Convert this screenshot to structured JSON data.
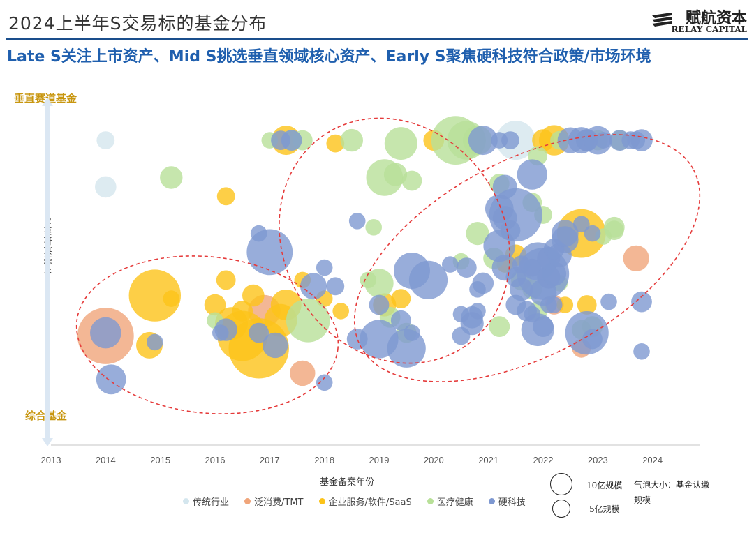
{
  "header": {
    "title": "2024上半年S交易标的基金分布",
    "logo_cn": "赋航资本",
    "logo_en": "RELAY CAPITAL",
    "subtitle": "Late S关注上市资产、Mid S挑选垂直领域核心资产、Early S聚焦硬科技符合政策/市场环境"
  },
  "chart_data": {
    "type": "scatter",
    "xlabel": "基金备案年份",
    "ylabel": "主赛道投资%",
    "ytop_label": "垂直赛道基金",
    "ybottom_label": "综合基金",
    "x_ticks": [
      "2013",
      "2014",
      "2015",
      "2016",
      "2017",
      "2018",
      "2019",
      "2020",
      "2021",
      "2022",
      "2023",
      "2024"
    ],
    "xlim": [
      2013,
      2025
    ],
    "ylim": [
      0,
      100
    ],
    "size_legend": [
      {
        "label": "10亿规模",
        "value": 10
      },
      {
        "label": "5亿规模",
        "value": 5
      }
    ],
    "size_note": "气泡大小：基金认缴规模",
    "colors": {
      "传统行业": "#d4e6ee",
      "泛消费/TMT": "#f0a57a",
      "企业服务/软件/SaaS": "#fcc319",
      "医疗健康": "#b8e098",
      "硬科技": "#7e98d1"
    },
    "series": [
      {
        "name": "传统行业",
        "points": [
          [
            2014.0,
            93,
            1.2
          ],
          [
            2014.0,
            78,
            1.7
          ],
          [
            2021.5,
            93,
            5.7
          ],
          [
            2021.5,
            54,
            1.0
          ]
        ]
      },
      {
        "name": "泛消费/TMT",
        "points": [
          [
            2014.0,
            30,
            11.8
          ],
          [
            2016.9,
            38,
            3.9
          ],
          [
            2017.6,
            18,
            2.4
          ],
          [
            2022.2,
            40,
            1.4
          ],
          [
            2022.7,
            26,
            1.3
          ],
          [
            2023.7,
            55,
            2.5
          ]
        ]
      },
      {
        "name": "企业服务/软件/SaaS",
        "points": [
          [
            2014.9,
            43,
            10.0
          ],
          [
            2015.2,
            42,
            1.0
          ],
          [
            2014.8,
            27,
            2.6
          ],
          [
            2016.0,
            40,
            1.7
          ],
          [
            2016.2,
            48,
            1.4
          ],
          [
            2016.7,
            43,
            1.8
          ],
          [
            2016.5,
            38,
            1.6
          ],
          [
            2016.3,
            34,
            4.0
          ],
          [
            2016.5,
            30,
            9.3
          ],
          [
            2016.8,
            26,
            13.5
          ],
          [
            2017.3,
            40,
            3.5
          ],
          [
            2017.2,
            35,
            4.0
          ],
          [
            2017.3,
            93,
            3.2
          ],
          [
            2017.6,
            48,
            1.0
          ],
          [
            2018.0,
            42,
            1.0
          ],
          [
            2018.3,
            38,
            1.0
          ],
          [
            2018.2,
            92,
            1.2
          ],
          [
            2016.2,
            75,
            1.2
          ],
          [
            2019.1,
            40,
            2.0
          ],
          [
            2019.4,
            42,
            1.4
          ],
          [
            2020.0,
            93,
            1.6
          ],
          [
            2021.3,
            53,
            1.0
          ],
          [
            2021.5,
            56,
            1.7
          ],
          [
            2022.0,
            93,
            1.8
          ],
          [
            2022.2,
            93,
            3.4
          ],
          [
            2022.4,
            40,
            1.0
          ],
          [
            2022.7,
            63,
            8.8
          ],
          [
            2022.8,
            40,
            1.4
          ]
        ]
      },
      {
        "name": "医疗健康",
        "points": [
          [
            2015.2,
            81,
            1.9
          ],
          [
            2016.0,
            35,
            1.0
          ],
          [
            2017.0,
            93,
            1.0
          ],
          [
            2017.4,
            93,
            1.5
          ],
          [
            2017.6,
            93,
            1.5
          ],
          [
            2017.7,
            35,
            7.1
          ],
          [
            2018.5,
            93,
            1.9
          ],
          [
            2019.0,
            47,
            3.1
          ],
          [
            2019.1,
            81,
            5.0
          ],
          [
            2019.2,
            36,
            1.6
          ],
          [
            2019.3,
            82,
            2.0
          ],
          [
            2019.4,
            92,
            4.0
          ],
          [
            2019.6,
            80,
            1.5
          ],
          [
            2019.5,
            31,
            1.5
          ],
          [
            2018.9,
            65,
            1.0
          ],
          [
            2018.8,
            48,
            1.0
          ],
          [
            2020.4,
            93,
            8.8
          ],
          [
            2020.6,
            93,
            5.5
          ],
          [
            2020.8,
            93,
            3.2
          ],
          [
            2020.8,
            63,
            2.0
          ],
          [
            2020.5,
            54,
            1.0
          ],
          [
            2021.2,
            79,
            1.5
          ],
          [
            2021.1,
            55,
            1.7
          ],
          [
            2021.2,
            33,
            1.6
          ],
          [
            2021.6,
            48,
            1.6
          ],
          [
            2021.8,
            45,
            1.4
          ],
          [
            2021.8,
            73,
            1.4
          ],
          [
            2021.9,
            38,
            1.4
          ],
          [
            2022.3,
            93,
            1.3
          ],
          [
            2022.3,
            47,
            1.0
          ],
          [
            2022.7,
            32,
            1.4
          ],
          [
            2022.9,
            33,
            1.6
          ],
          [
            2023.0,
            93,
            1.5
          ],
          [
            2023.3,
            64,
            1.4
          ],
          [
            2023.3,
            65,
            1.6
          ],
          [
            2023.4,
            93,
            1.5
          ],
          [
            2023.1,
            62,
            1.0
          ],
          [
            2021.9,
            88,
            1.4
          ],
          [
            2022.0,
            69,
            1.2
          ]
        ]
      },
      {
        "name": "硬科技",
        "points": [
          [
            2014.0,
            31,
            3.6
          ],
          [
            2014.1,
            16,
            3.3
          ],
          [
            2014.9,
            28,
            1.0
          ],
          [
            2016.1,
            31,
            1.0
          ],
          [
            2016.2,
            32,
            1.9
          ],
          [
            2016.8,
            31,
            1.5
          ],
          [
            2017.0,
            57,
            7.8
          ],
          [
            2017.1,
            27,
            2.4
          ],
          [
            2016.8,
            63,
            1.0
          ],
          [
            2017.8,
            46,
            2.6
          ],
          [
            2018.2,
            46,
            1.2
          ],
          [
            2018.0,
            15,
            1.0
          ],
          [
            2017.2,
            93,
            1.4
          ],
          [
            2017.4,
            93,
            1.6
          ],
          [
            2018.6,
            67,
            1.0
          ],
          [
            2018.6,
            29,
            1.6
          ],
          [
            2018.0,
            52,
            1.0
          ],
          [
            2019.0,
            29,
            5.5
          ],
          [
            2019.0,
            40,
            1.5
          ],
          [
            2019.4,
            35,
            1.5
          ],
          [
            2019.5,
            26,
            5.5
          ],
          [
            2019.6,
            31,
            1.0
          ],
          [
            2019.6,
            51,
            4.9
          ],
          [
            2019.9,
            48,
            5.5
          ],
          [
            2020.3,
            53,
            1.0
          ],
          [
            2020.5,
            37,
            1.0
          ],
          [
            2020.6,
            52,
            1.5
          ],
          [
            2020.5,
            30,
            1.2
          ],
          [
            2020.7,
            34,
            2.0
          ],
          [
            2020.8,
            38,
            1.0
          ],
          [
            2020.8,
            45,
            1.0
          ],
          [
            2020.9,
            47,
            1.7
          ],
          [
            2020.7,
            36,
            1.8
          ],
          [
            2020.9,
            93,
            3.2
          ],
          [
            2021.2,
            93,
            1.0
          ],
          [
            2021.4,
            93,
            1.2
          ],
          [
            2021.3,
            78,
            2.2
          ],
          [
            2021.2,
            71,
            3.0
          ],
          [
            2021.3,
            68,
            2.2
          ],
          [
            2021.4,
            64,
            1.5
          ],
          [
            2021.5,
            69,
            10.5
          ],
          [
            2021.2,
            59,
            3.8
          ],
          [
            2021.3,
            52,
            2.5
          ],
          [
            2021.5,
            49,
            1.5
          ],
          [
            2021.6,
            45,
            2.0
          ],
          [
            2021.5,
            40,
            1.5
          ],
          [
            2021.6,
            53,
            1.2
          ],
          [
            2021.8,
            52,
            1.2
          ],
          [
            2021.8,
            82,
            3.4
          ],
          [
            2021.9,
            54,
            5.4
          ],
          [
            2022.0,
            44,
            2.7
          ],
          [
            2022.0,
            50,
            10.0
          ],
          [
            2022.0,
            33,
            1.6
          ],
          [
            2021.8,
            37,
            1.0
          ],
          [
            2021.7,
            38,
            1.5
          ],
          [
            2021.9,
            32,
            4.0
          ],
          [
            2022.1,
            49,
            2.0
          ],
          [
            2022.2,
            50,
            2.2
          ],
          [
            2022.1,
            55,
            2.0
          ],
          [
            2022.3,
            56,
            2.2
          ],
          [
            2022.2,
            58,
            1.6
          ],
          [
            2022.4,
            61,
            2.7
          ],
          [
            2022.4,
            63,
            2.7
          ],
          [
            2022.5,
            93,
            2.5
          ],
          [
            2022.7,
            93,
            2.6
          ],
          [
            2022.8,
            93,
            1.8
          ],
          [
            2022.8,
            93,
            1.8
          ],
          [
            2023.0,
            93,
            3.0
          ],
          [
            2023.1,
            93,
            1.0
          ],
          [
            2023.4,
            93,
            1.6
          ],
          [
            2023.6,
            93,
            1.2
          ],
          [
            2023.7,
            93,
            1.2
          ],
          [
            2023.8,
            93,
            1.8
          ],
          [
            2022.7,
            66,
            1.0
          ],
          [
            2022.9,
            63,
            1.0
          ],
          [
            2022.8,
            31,
            7.0
          ],
          [
            2022.9,
            29,
            1.5
          ],
          [
            2023.2,
            41,
            1.0
          ],
          [
            2023.8,
            41,
            1.6
          ],
          [
            2023.8,
            25,
            1.0
          ],
          [
            2022.1,
            40,
            1.0
          ],
          [
            2022.2,
            40,
            1.0
          ]
        ]
      }
    ]
  }
}
